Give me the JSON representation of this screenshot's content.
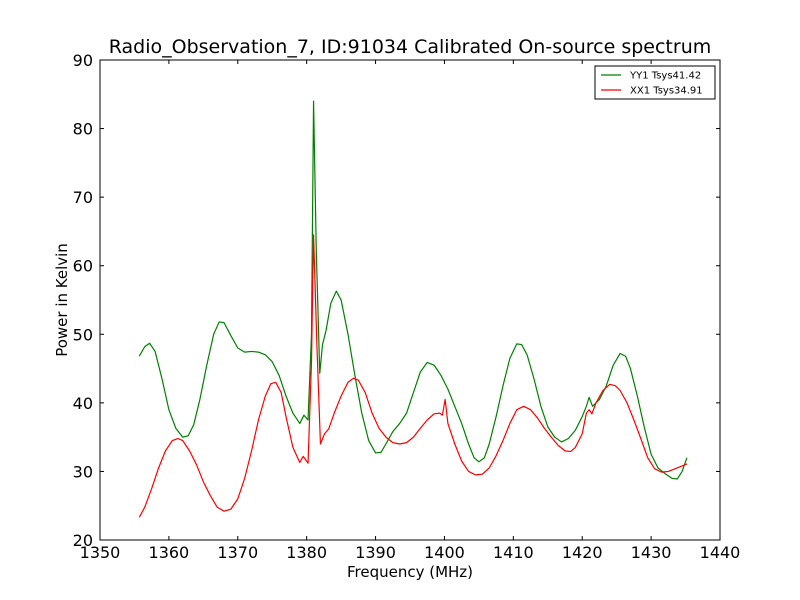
{
  "chart_data": {
    "type": "line",
    "title": "Radio_Observation_7, ID:91034 Calibrated On-source spectrum",
    "xlabel": "Frequency (MHz)",
    "ylabel": "Power in Kelvin",
    "xlim": [
      1350,
      1440
    ],
    "ylim": [
      20,
      90
    ],
    "xticks": [
      "1350",
      "1360",
      "1370",
      "1380",
      "1390",
      "1400",
      "1410",
      "1420",
      "1430",
      "1440"
    ],
    "yticks": [
      "20",
      "30",
      "40",
      "50",
      "60",
      "70",
      "80",
      "90"
    ],
    "grid": false,
    "legend_position": "top-right",
    "series": [
      {
        "name": "YY1 Tsys41.42",
        "color": "#008000",
        "points": [
          [
            1355.7,
            46.8
          ],
          [
            1356.5,
            48.2
          ],
          [
            1357.2,
            48.7
          ],
          [
            1358.0,
            47.5
          ],
          [
            1359.0,
            43.5
          ],
          [
            1360.0,
            39.0
          ],
          [
            1361.0,
            36.3
          ],
          [
            1362.0,
            35.0
          ],
          [
            1362.8,
            35.2
          ],
          [
            1363.6,
            36.8
          ],
          [
            1364.5,
            40.5
          ],
          [
            1365.5,
            45.5
          ],
          [
            1366.5,
            50.0
          ],
          [
            1367.3,
            51.8
          ],
          [
            1368.0,
            51.7
          ],
          [
            1369.0,
            49.8
          ],
          [
            1370.0,
            48.0
          ],
          [
            1371.0,
            47.4
          ],
          [
            1372.0,
            47.5
          ],
          [
            1373.0,
            47.4
          ],
          [
            1374.0,
            47.0
          ],
          [
            1375.0,
            46.0
          ],
          [
            1376.0,
            44.0
          ],
          [
            1377.0,
            41.0
          ],
          [
            1378.0,
            38.5
          ],
          [
            1379.0,
            37.0
          ],
          [
            1379.6,
            38.2
          ],
          [
            1380.2,
            37.5
          ],
          [
            1380.7,
            50.0
          ],
          [
            1381.0,
            84.0
          ],
          [
            1381.4,
            62.0
          ],
          [
            1381.9,
            44.3
          ],
          [
            1382.3,
            48.5
          ],
          [
            1382.8,
            50.5
          ],
          [
            1383.5,
            54.5
          ],
          [
            1384.3,
            56.3
          ],
          [
            1385.0,
            55.0
          ],
          [
            1386.0,
            50.0
          ],
          [
            1387.0,
            44.0
          ],
          [
            1388.0,
            38.5
          ],
          [
            1389.0,
            34.5
          ],
          [
            1390.0,
            32.7
          ],
          [
            1390.8,
            32.8
          ],
          [
            1391.5,
            34.0
          ],
          [
            1392.5,
            35.8
          ],
          [
            1393.5,
            37.0
          ],
          [
            1394.5,
            38.5
          ],
          [
            1395.5,
            41.5
          ],
          [
            1396.5,
            44.5
          ],
          [
            1397.5,
            45.9
          ],
          [
            1398.5,
            45.5
          ],
          [
            1399.5,
            44.0
          ],
          [
            1400.5,
            42.0
          ],
          [
            1401.5,
            39.5
          ],
          [
            1402.5,
            37.0
          ],
          [
            1403.5,
            34.0
          ],
          [
            1404.3,
            32.0
          ],
          [
            1405.0,
            31.4
          ],
          [
            1405.8,
            32.0
          ],
          [
            1406.5,
            34.0
          ],
          [
            1407.5,
            38.0
          ],
          [
            1408.5,
            42.5
          ],
          [
            1409.5,
            46.5
          ],
          [
            1410.5,
            48.6
          ],
          [
            1411.2,
            48.5
          ],
          [
            1412.0,
            47.0
          ],
          [
            1413.0,
            43.5
          ],
          [
            1414.0,
            39.5
          ],
          [
            1415.0,
            36.5
          ],
          [
            1416.0,
            35.0
          ],
          [
            1417.0,
            34.3
          ],
          [
            1418.0,
            34.8
          ],
          [
            1419.0,
            36.0
          ],
          [
            1420.0,
            38.0
          ],
          [
            1420.6,
            39.5
          ],
          [
            1421.0,
            40.8
          ],
          [
            1421.5,
            39.5
          ],
          [
            1422.5,
            40.5
          ],
          [
            1423.5,
            42.5
          ],
          [
            1424.5,
            45.5
          ],
          [
            1425.5,
            47.2
          ],
          [
            1426.3,
            46.8
          ],
          [
            1427.0,
            45.0
          ],
          [
            1428.0,
            41.0
          ],
          [
            1429.0,
            36.5
          ],
          [
            1430.0,
            32.5
          ],
          [
            1431.0,
            30.5
          ],
          [
            1432.0,
            29.7
          ],
          [
            1433.0,
            29.0
          ],
          [
            1433.8,
            28.9
          ],
          [
            1434.5,
            30.0
          ],
          [
            1435.2,
            32.0
          ]
        ]
      },
      {
        "name": "XX1 Tsys34.91",
        "color": "#ff0000",
        "points": [
          [
            1355.7,
            23.3
          ],
          [
            1356.5,
            24.8
          ],
          [
            1357.5,
            27.5
          ],
          [
            1358.5,
            30.5
          ],
          [
            1359.5,
            33.0
          ],
          [
            1360.5,
            34.5
          ],
          [
            1361.3,
            34.8
          ],
          [
            1362.0,
            34.5
          ],
          [
            1363.0,
            33.0
          ],
          [
            1364.0,
            31.0
          ],
          [
            1365.0,
            28.5
          ],
          [
            1366.0,
            26.5
          ],
          [
            1367.0,
            24.8
          ],
          [
            1368.0,
            24.2
          ],
          [
            1369.0,
            24.5
          ],
          [
            1370.0,
            26.0
          ],
          [
            1371.0,
            29.0
          ],
          [
            1372.0,
            33.0
          ],
          [
            1373.0,
            37.5
          ],
          [
            1374.0,
            41.0
          ],
          [
            1374.8,
            42.8
          ],
          [
            1375.5,
            43.0
          ],
          [
            1376.3,
            41.5
          ],
          [
            1377.0,
            38.0
          ],
          [
            1378.0,
            33.5
          ],
          [
            1379.0,
            31.3
          ],
          [
            1379.5,
            32.2
          ],
          [
            1380.2,
            31.2
          ],
          [
            1380.7,
            46.0
          ],
          [
            1381.0,
            64.5
          ],
          [
            1381.5,
            48.0
          ],
          [
            1382.0,
            34.0
          ],
          [
            1382.6,
            35.5
          ],
          [
            1383.2,
            36.2
          ],
          [
            1384.0,
            38.5
          ],
          [
            1385.0,
            41.0
          ],
          [
            1386.0,
            43.0
          ],
          [
            1386.8,
            43.6
          ],
          [
            1387.5,
            43.3
          ],
          [
            1388.5,
            41.5
          ],
          [
            1389.5,
            38.5
          ],
          [
            1390.5,
            36.3
          ],
          [
            1391.5,
            35.0
          ],
          [
            1392.5,
            34.2
          ],
          [
            1393.5,
            34.0
          ],
          [
            1394.5,
            34.2
          ],
          [
            1395.5,
            35.0
          ],
          [
            1396.5,
            36.3
          ],
          [
            1397.5,
            37.5
          ],
          [
            1398.5,
            38.4
          ],
          [
            1399.3,
            38.5
          ],
          [
            1399.7,
            38.2
          ],
          [
            1400.1,
            40.5
          ],
          [
            1400.5,
            37.0
          ],
          [
            1401.5,
            34.0
          ],
          [
            1402.5,
            31.5
          ],
          [
            1403.5,
            30.0
          ],
          [
            1404.5,
            29.5
          ],
          [
            1405.5,
            29.6
          ],
          [
            1406.5,
            30.5
          ],
          [
            1407.5,
            32.3
          ],
          [
            1408.5,
            34.5
          ],
          [
            1409.5,
            37.0
          ],
          [
            1410.5,
            39.0
          ],
          [
            1411.5,
            39.5
          ],
          [
            1412.5,
            39.0
          ],
          [
            1413.5,
            37.8
          ],
          [
            1414.5,
            36.3
          ],
          [
            1415.5,
            35.0
          ],
          [
            1416.5,
            33.8
          ],
          [
            1417.5,
            33.0
          ],
          [
            1418.3,
            32.9
          ],
          [
            1419.0,
            33.5
          ],
          [
            1420.0,
            35.5
          ],
          [
            1420.6,
            38.5
          ],
          [
            1421.0,
            39.0
          ],
          [
            1421.4,
            38.4
          ],
          [
            1422.0,
            40.0
          ],
          [
            1423.0,
            41.8
          ],
          [
            1424.0,
            42.7
          ],
          [
            1424.8,
            42.5
          ],
          [
            1425.5,
            41.8
          ],
          [
            1426.5,
            40.0
          ],
          [
            1427.5,
            37.5
          ],
          [
            1428.5,
            34.8
          ],
          [
            1429.5,
            32.0
          ],
          [
            1430.5,
            30.4
          ],
          [
            1431.5,
            29.9
          ],
          [
            1432.5,
            30.0
          ],
          [
            1433.5,
            30.4
          ],
          [
            1434.5,
            30.8
          ],
          [
            1435.2,
            31.1
          ]
        ]
      }
    ]
  }
}
